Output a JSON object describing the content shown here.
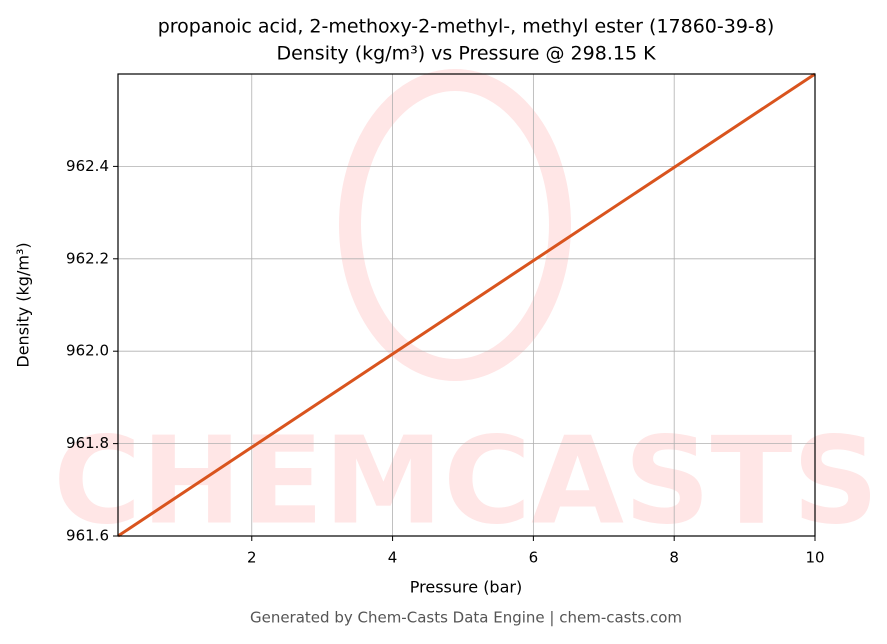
{
  "chart_data": {
    "type": "line",
    "title": "propanoic acid, 2-methoxy-2-methyl-, methyl ester (17860-39-8)",
    "subtitle": "Density (kg/m³) vs Pressure @ 298.15 K",
    "x_label": "Pressure (bar)",
    "y_label": "Density (kg/m³)",
    "watermark": "CHEMCASTS",
    "footer": "Generated by Chem-Casts Data Engine | chem-casts.com",
    "x": [
      0.1,
      2,
      4,
      6,
      8,
      10
    ],
    "series": [
      {
        "name": "Density",
        "color": "#d9541e",
        "values": [
          961.6,
          961.792,
          961.994,
          962.196,
          962.398,
          962.6
        ]
      }
    ],
    "xlim": [
      0.1,
      10
    ],
    "xticks": [
      2,
      4,
      6,
      8,
      10
    ],
    "ylim": [
      961.6,
      962.6
    ],
    "yticks": [
      {
        "value": 961.6,
        "label": "961.6"
      },
      {
        "value": 961.8,
        "label": "961.8"
      },
      {
        "value": 962.0,
        "label": "962.0"
      },
      {
        "value": 962.2,
        "label": "962.2"
      },
      {
        "value": 962.4,
        "label": "962.4"
      }
    ],
    "grid": true
  }
}
